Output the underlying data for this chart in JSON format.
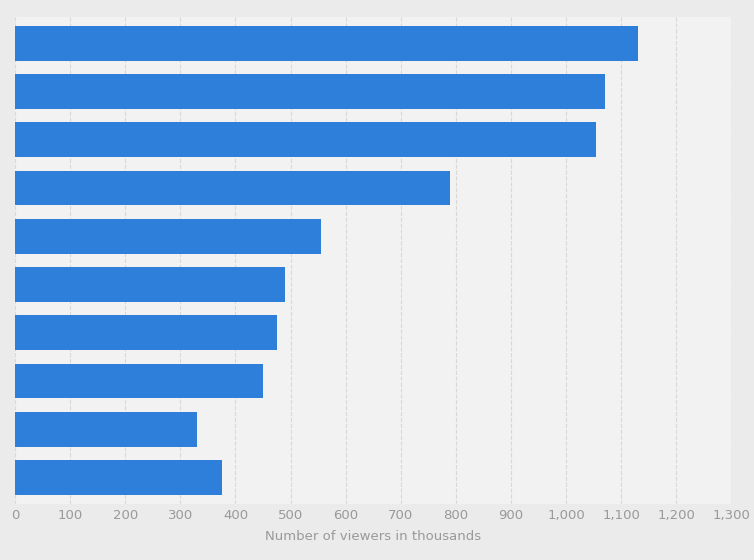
{
  "values": [
    1130,
    1070,
    1055,
    790,
    555,
    490,
    475,
    450,
    330,
    375
  ],
  "bar_color": "#2e7fd9",
  "background_color": "#ebebeb",
  "plot_background_color": "#f2f2f2",
  "xlabel": "Number of viewers in thousands",
  "xlim": [
    0,
    1300
  ],
  "xticks": [
    0,
    100,
    200,
    300,
    400,
    500,
    600,
    700,
    800,
    900,
    1000,
    1100,
    1200,
    1300
  ],
  "grid_color": "#d8d8d8",
  "bar_height": 0.72,
  "tick_fontsize": 9.5,
  "xlabel_fontsize": 9.5,
  "tick_color": "#999999",
  "xlabel_color": "#999999"
}
